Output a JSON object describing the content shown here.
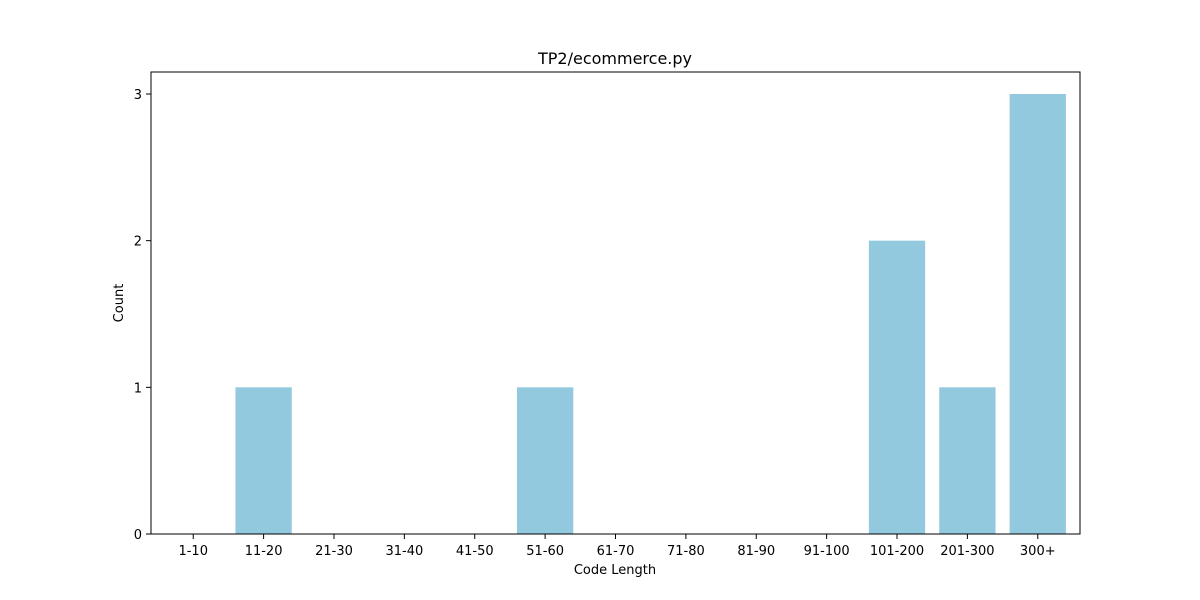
{
  "chart_data": {
    "type": "bar",
    "title": "TP2/ecommerce.py",
    "xlabel": "Code Length",
    "ylabel": "Count",
    "categories": [
      "1-10",
      "11-20",
      "21-30",
      "31-40",
      "41-50",
      "51-60",
      "61-70",
      "71-80",
      "81-90",
      "91-100",
      "101-200",
      "201-300",
      "300+"
    ],
    "values": [
      0,
      1,
      0,
      0,
      0,
      1,
      0,
      0,
      0,
      0,
      2,
      1,
      3
    ],
    "ylim": [
      0,
      3.15
    ],
    "yticks": [
      0,
      1,
      2,
      3
    ],
    "grid": false,
    "legend": "none",
    "bar_color": "#92C9DF"
  }
}
